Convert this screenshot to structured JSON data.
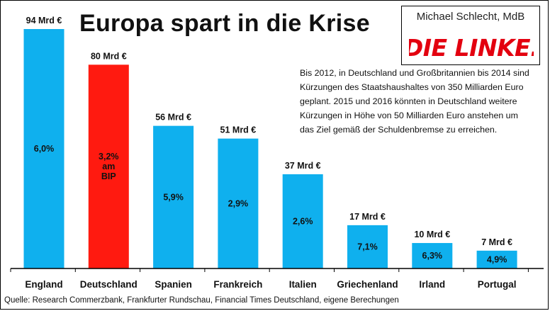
{
  "title": "Europa spart in die Krise",
  "brand": {
    "name": "Michael Schlecht, MdB",
    "party": "DIE LINKE."
  },
  "note": "Bis 2012, in Deutschland und Großbritannien bis 2014 sind Kürzungen des Staatshaushaltes  von 350 Milliarden Euro geplant. 2015 und 2016 könnten  in Deutschland weitere Kürzungen in Höhe von 50 Milliarden Euro anstehen um das Ziel gemäß der Schuldenbremse zu erreichen.",
  "source": "Quelle:  Research Commerzbank, Frankfurter Rundschau, Financial Times Deutschland, eigene Berechungen",
  "colors": {
    "bar": "#0fb0ee",
    "highlight": "#ff1a10",
    "axis": "#000000"
  },
  "chart_data": {
    "type": "bar",
    "title": "Europa spart in die Krise",
    "xlabel": "",
    "ylabel": "",
    "unit": "Mrd €",
    "ylim": [
      0,
      100
    ],
    "grid": false,
    "categories": [
      "England",
      "Deutschland",
      "Spanien",
      "Frankreich",
      "Italien",
      "Griechenland",
      "Irland",
      "Portugal"
    ],
    "values": [
      94,
      80,
      56,
      51,
      37,
      17,
      10,
      7
    ],
    "value_labels": [
      "94 Mrd €",
      "80 Mrd €",
      "56 Mrd €",
      "51 Mrd €",
      "37 Mrd €",
      "17 Mrd €",
      "10 Mrd €",
      "7 Mrd €"
    ],
    "share_labels": [
      "6,0%",
      "3,2%\nam\nBIP",
      "5,9%",
      "2,9%",
      "2,6%",
      "7,1%",
      "6,3%",
      "4,9%"
    ],
    "highlight_index": 1
  }
}
